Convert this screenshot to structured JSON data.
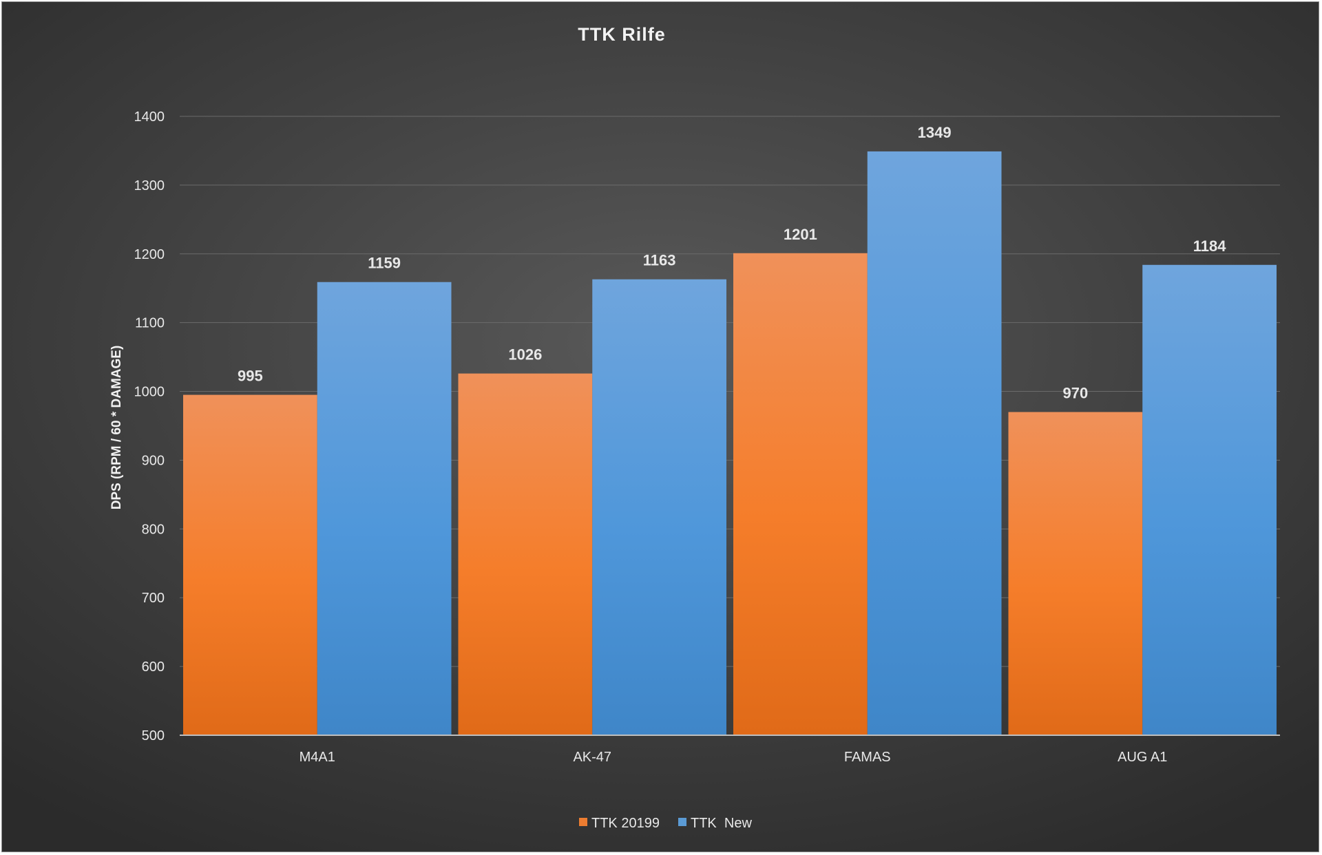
{
  "chart_data": {
    "type": "bar",
    "title": "TTK Rilfe",
    "xlabel": "",
    "ylabel": "DPS (RPM / 60 * DAMAGE)",
    "ylim": [
      500,
      1400
    ],
    "yticks": [
      500,
      600,
      700,
      800,
      900,
      1000,
      1100,
      1200,
      1300,
      1400
    ],
    "categories": [
      "M4A1",
      "AK-47",
      "FAMAS",
      "AUG A1"
    ],
    "series": [
      {
        "name": "TTK 20199",
        "values": [
          995,
          1026,
          1201,
          970
        ],
        "color": "#ed7d31"
      },
      {
        "name": "TTK  New",
        "values": [
          1159,
          1163,
          1349,
          1184
        ],
        "color": "#5b9bd5"
      }
    ],
    "grid": true,
    "legend_position": "bottom"
  }
}
